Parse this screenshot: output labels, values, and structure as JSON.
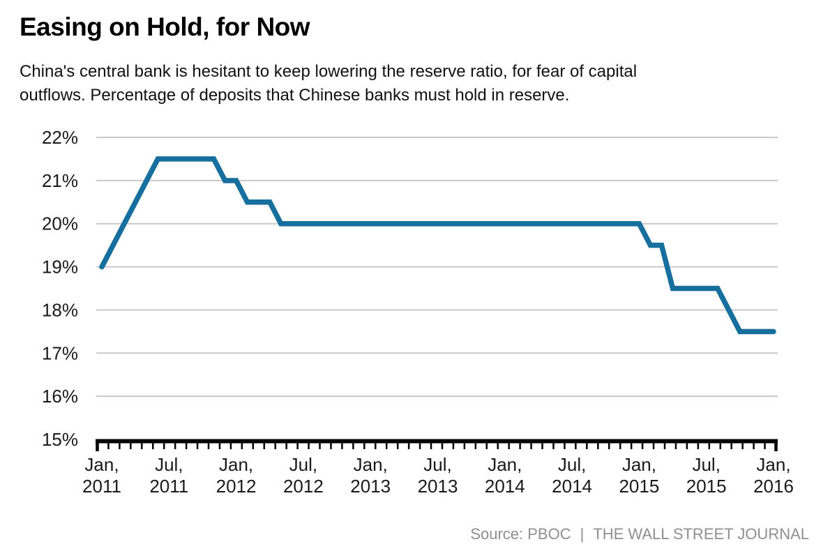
{
  "header": {
    "title": "Easing on Hold, for Now",
    "subtitle": "China's central bank is hesitant to keep lowering the reserve ratio, for fear of capital\noutflows. Percentage of deposits that Chinese banks must hold in reserve."
  },
  "footer": {
    "source": "Source: PBOC",
    "pipe": "|",
    "publication": "THE WALL STREET JOURNAL"
  },
  "style": {
    "background": "#ffffff",
    "line_color": "#176f9e",
    "grid_color": "#c9c9c9",
    "axis_color": "#000000",
    "axis_label_color": "#1a1a1a",
    "footer_color": "#8f8f8f"
  },
  "chart_data": {
    "type": "line",
    "title": "Easing on Hold, for Now",
    "xlabel": "",
    "ylabel": "Percentage of deposits that Chinese banks must hold in reserve",
    "x_axis": {
      "start": "Jan 2011",
      "end": "Jan 2016",
      "interval": "monthly",
      "ticks": [
        {
          "top": "Jan,",
          "bottom": "2011",
          "month_index": 0
        },
        {
          "top": "Jul,",
          "bottom": "2011",
          "month_index": 6
        },
        {
          "top": "Jan,",
          "bottom": "2012",
          "month_index": 12
        },
        {
          "top": "Jul,",
          "bottom": "2012",
          "month_index": 18
        },
        {
          "top": "Jan,",
          "bottom": "2013",
          "month_index": 24
        },
        {
          "top": "Jul,",
          "bottom": "2013",
          "month_index": 30
        },
        {
          "top": "Jan,",
          "bottom": "2014",
          "month_index": 36
        },
        {
          "top": "Jul,",
          "bottom": "2014",
          "month_index": 42
        },
        {
          "top": "Jan,",
          "bottom": "2015",
          "month_index": 48
        },
        {
          "top": "Jul,",
          "bottom": "2015",
          "month_index": 54
        },
        {
          "top": "Jan,",
          "bottom": "2016",
          "month_index": 60
        }
      ]
    },
    "y_axis": {
      "unit": "%",
      "min": 15,
      "max": 22,
      "tick_labels": [
        "22%",
        "21%",
        "20%",
        "19%",
        "18%",
        "17%",
        "16%",
        "15%"
      ]
    },
    "grid": "horizontal",
    "legend": "none",
    "series": [
      {
        "name": "Percentage of deposits that Chinese banks must hold in reserve",
        "color": "#176f9e",
        "monthly_values": [
          19.0,
          19.5,
          20.0,
          20.5,
          21.0,
          21.5,
          21.5,
          21.5,
          21.5,
          21.5,
          21.5,
          21.0,
          21.0,
          20.5,
          20.5,
          20.5,
          20.0,
          20.0,
          20.0,
          20.0,
          20.0,
          20.0,
          20.0,
          20.0,
          20.0,
          20.0,
          20.0,
          20.0,
          20.0,
          20.0,
          20.0,
          20.0,
          20.0,
          20.0,
          20.0,
          20.0,
          20.0,
          20.0,
          20.0,
          20.0,
          20.0,
          20.0,
          20.0,
          20.0,
          20.0,
          20.0,
          20.0,
          20.0,
          20.0,
          19.5,
          19.5,
          18.5,
          18.5,
          18.5,
          18.5,
          18.5,
          18.0,
          17.5,
          17.5,
          17.5,
          17.5
        ]
      }
    ]
  }
}
